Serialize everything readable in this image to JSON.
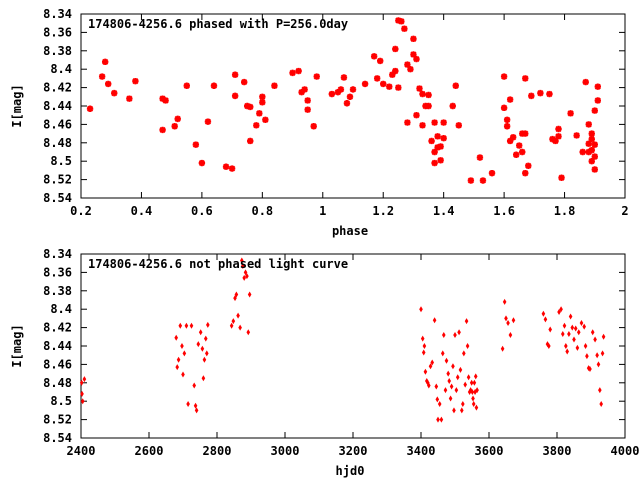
{
  "chart_data": [
    {
      "type": "scatter",
      "title": "174806-4256.6 phased with P=256.0day",
      "xlabel": "phase",
      "ylabel": "I[mag]",
      "xlim": [
        0.2,
        2.0
      ],
      "ylim": [
        8.34,
        8.54
      ],
      "y_inverted": true,
      "xticks": [
        "0.2",
        "0.4",
        "0.6",
        "0.8",
        "1",
        "1.2",
        "1.4",
        "1.6",
        "1.8",
        "2"
      ],
      "xtick_values": [
        0.2,
        0.4,
        0.6,
        0.8,
        1.0,
        1.2,
        1.4,
        1.6,
        1.8,
        2.0
      ],
      "yticks": [
        "8.34",
        "8.36",
        "8.38",
        "8.4",
        "8.42",
        "8.44",
        "8.46",
        "8.48",
        "8.5",
        "8.52",
        "8.54"
      ],
      "ytick_values": [
        8.34,
        8.36,
        8.38,
        8.4,
        8.42,
        8.44,
        8.46,
        8.48,
        8.5,
        8.52,
        8.54
      ],
      "marker": "star",
      "color": "#ff0000",
      "points": [
        [
          0.23,
          8.443
        ],
        [
          0.27,
          8.408
        ],
        [
          0.28,
          8.392
        ],
        [
          0.29,
          8.416
        ],
        [
          0.31,
          8.426
        ],
        [
          0.36,
          8.432
        ],
        [
          0.38,
          8.413
        ],
        [
          0.47,
          8.432
        ],
        [
          0.47,
          8.466
        ],
        [
          0.48,
          8.434
        ],
        [
          0.51,
          8.462
        ],
        [
          0.52,
          8.454
        ],
        [
          0.55,
          8.418
        ],
        [
          0.58,
          8.482
        ],
        [
          0.6,
          8.502
        ],
        [
          0.62,
          8.457
        ],
        [
          0.64,
          8.418
        ],
        [
          0.68,
          8.506
        ],
        [
          0.7,
          8.508
        ],
        [
          0.71,
          8.406
        ],
        [
          0.71,
          8.429
        ],
        [
          0.74,
          8.414
        ],
        [
          0.75,
          8.44
        ],
        [
          0.76,
          8.441
        ],
        [
          0.76,
          8.478
        ],
        [
          0.78,
          8.461
        ],
        [
          0.79,
          8.448
        ],
        [
          0.8,
          8.436
        ],
        [
          0.8,
          8.43
        ],
        [
          0.81,
          8.455
        ],
        [
          0.84,
          8.418
        ],
        [
          0.9,
          8.404
        ],
        [
          0.92,
          8.402
        ],
        [
          0.93,
          8.425
        ],
        [
          0.94,
          8.422
        ],
        [
          0.95,
          8.444
        ],
        [
          0.95,
          8.434
        ],
        [
          0.97,
          8.462
        ],
        [
          0.98,
          8.408
        ],
        [
          1.03,
          8.427
        ],
        [
          1.05,
          8.425
        ],
        [
          1.06,
          8.422
        ],
        [
          1.07,
          8.409
        ],
        [
          1.08,
          8.437
        ],
        [
          1.09,
          8.43
        ],
        [
          1.1,
          8.422
        ],
        [
          1.14,
          8.416
        ],
        [
          1.17,
          8.386
        ],
        [
          1.18,
          8.41
        ],
        [
          1.19,
          8.391
        ],
        [
          1.2,
          8.416
        ],
        [
          1.22,
          8.419
        ],
        [
          1.23,
          8.406
        ],
        [
          1.24,
          8.378
        ],
        [
          1.24,
          8.402
        ],
        [
          1.25,
          8.347
        ],
        [
          1.25,
          8.42
        ],
        [
          1.26,
          8.348
        ],
        [
          1.27,
          8.356
        ],
        [
          1.28,
          8.395
        ],
        [
          1.28,
          8.458
        ],
        [
          1.29,
          8.4
        ],
        [
          1.3,
          8.384
        ],
        [
          1.3,
          8.367
        ],
        [
          1.31,
          8.45
        ],
        [
          1.31,
          8.389
        ],
        [
          1.32,
          8.421
        ],
        [
          1.33,
          8.427
        ],
        [
          1.33,
          8.461
        ],
        [
          1.34,
          8.44
        ],
        [
          1.35,
          8.44
        ],
        [
          1.35,
          8.428
        ],
        [
          1.36,
          8.478
        ],
        [
          1.37,
          8.49
        ],
        [
          1.37,
          8.458
        ],
        [
          1.37,
          8.502
        ],
        [
          1.38,
          8.485
        ],
        [
          1.38,
          8.473
        ],
        [
          1.39,
          8.484
        ],
        [
          1.39,
          8.499
        ],
        [
          1.4,
          8.458
        ],
        [
          1.4,
          8.475
        ],
        [
          1.43,
          8.44
        ],
        [
          1.44,
          8.418
        ],
        [
          1.45,
          8.461
        ],
        [
          1.49,
          8.521
        ],
        [
          1.52,
          8.496
        ],
        [
          1.53,
          8.521
        ],
        [
          1.56,
          8.513
        ],
        [
          1.6,
          8.442
        ],
        [
          1.6,
          8.408
        ],
        [
          1.61,
          8.462
        ],
        [
          1.61,
          8.455
        ],
        [
          1.62,
          8.478
        ],
        [
          1.62,
          8.433
        ],
        [
          1.63,
          8.474
        ],
        [
          1.64,
          8.493
        ],
        [
          1.65,
          8.483
        ],
        [
          1.66,
          8.49
        ],
        [
          1.66,
          8.47
        ],
        [
          1.67,
          8.513
        ],
        [
          1.67,
          8.41
        ],
        [
          1.67,
          8.47
        ],
        [
          1.68,
          8.505
        ],
        [
          1.69,
          8.429
        ],
        [
          1.72,
          8.426
        ],
        [
          1.75,
          8.427
        ],
        [
          1.76,
          8.476
        ],
        [
          1.77,
          8.478
        ],
        [
          1.78,
          8.465
        ],
        [
          1.78,
          8.473
        ],
        [
          1.79,
          8.518
        ],
        [
          1.82,
          8.448
        ],
        [
          1.84,
          8.472
        ],
        [
          1.86,
          8.49
        ],
        [
          1.87,
          8.414
        ],
        [
          1.88,
          8.46
        ],
        [
          1.88,
          8.49
        ],
        [
          1.88,
          8.481
        ],
        [
          1.89,
          8.476
        ],
        [
          1.89,
          8.5
        ],
        [
          1.89,
          8.488
        ],
        [
          1.9,
          8.509
        ],
        [
          1.9,
          8.495
        ],
        [
          1.9,
          8.482
        ],
        [
          1.91,
          8.434
        ],
        [
          1.91,
          8.419
        ],
        [
          1.9,
          8.445
        ],
        [
          1.89,
          8.47
        ]
      ]
    },
    {
      "type": "scatter",
      "title": "174806-4256.6 not phased light curve",
      "xlabel": "hjd0",
      "ylabel": "I[mag]",
      "xlim": [
        2400,
        4000
      ],
      "ylim": [
        8.34,
        8.54
      ],
      "y_inverted": true,
      "xticks": [
        "2400",
        "2600",
        "2800",
        "3000",
        "3200",
        "3400",
        "3600",
        "3800",
        "4000"
      ],
      "xtick_values": [
        2400,
        2600,
        2800,
        3000,
        3200,
        3400,
        3600,
        3800,
        4000
      ],
      "yticks": [
        "8.34",
        "8.36",
        "8.38",
        "8.4",
        "8.42",
        "8.44",
        "8.46",
        "8.48",
        "8.5",
        "8.52",
        "8.54"
      ],
      "ytick_values": [
        8.34,
        8.36,
        8.38,
        8.4,
        8.42,
        8.44,
        8.46,
        8.48,
        8.5,
        8.52,
        8.54
      ],
      "marker": "diamond",
      "color": "#ff0000",
      "points": [
        [
          2402,
          8.48
        ],
        [
          2403,
          8.492
        ],
        [
          2405,
          8.5
        ],
        [
          2410,
          8.476
        ],
        [
          2680,
          8.431
        ],
        [
          2683,
          8.463
        ],
        [
          2687,
          8.455
        ],
        [
          2692,
          8.418
        ],
        [
          2697,
          8.44
        ],
        [
          2700,
          8.471
        ],
        [
          2704,
          8.448
        ],
        [
          2710,
          8.418
        ],
        [
          2715,
          8.503
        ],
        [
          2725,
          8.418
        ],
        [
          2733,
          8.483
        ],
        [
          2737,
          8.505
        ],
        [
          2740,
          8.51
        ],
        [
          2745,
          8.438
        ],
        [
          2752,
          8.425
        ],
        [
          2757,
          8.443
        ],
        [
          2760,
          8.475
        ],
        [
          2763,
          8.455
        ],
        [
          2767,
          8.432
        ],
        [
          2770,
          8.448
        ],
        [
          2773,
          8.417
        ],
        [
          2843,
          8.418
        ],
        [
          2848,
          8.413
        ],
        [
          2853,
          8.388
        ],
        [
          2857,
          8.384
        ],
        [
          2862,
          8.407
        ],
        [
          2868,
          8.42
        ],
        [
          2873,
          8.347
        ],
        [
          2876,
          8.353
        ],
        [
          2880,
          8.366
        ],
        [
          2884,
          8.36
        ],
        [
          2888,
          8.364
        ],
        [
          2892,
          8.425
        ],
        [
          2896,
          8.384
        ],
        [
          3400,
          8.4
        ],
        [
          3405,
          8.432
        ],
        [
          3408,
          8.447
        ],
        [
          3410,
          8.44
        ],
        [
          3413,
          8.468
        ],
        [
          3417,
          8.478
        ],
        [
          3420,
          8.48
        ],
        [
          3423,
          8.483
        ],
        [
          3428,
          8.462
        ],
        [
          3433,
          8.458
        ],
        [
          3440,
          8.412
        ],
        [
          3445,
          8.484
        ],
        [
          3448,
          8.498
        ],
        [
          3450,
          8.52
        ],
        [
          3455,
          8.503
        ],
        [
          3460,
          8.52
        ],
        [
          3464,
          8.448
        ],
        [
          3467,
          8.428
        ],
        [
          3472,
          8.488
        ],
        [
          3475,
          8.456
        ],
        [
          3480,
          8.47
        ],
        [
          3483,
          8.478
        ],
        [
          3487,
          8.497
        ],
        [
          3490,
          8.484
        ],
        [
          3494,
          8.462
        ],
        [
          3497,
          8.51
        ],
        [
          3500,
          8.428
        ],
        [
          3504,
          8.488
        ],
        [
          3508,
          8.474
        ],
        [
          3512,
          8.425
        ],
        [
          3516,
          8.466
        ],
        [
          3520,
          8.51
        ],
        [
          3523,
          8.503
        ],
        [
          3526,
          8.448
        ],
        [
          3530,
          8.482
        ],
        [
          3534,
          8.413
        ],
        [
          3537,
          8.44
        ],
        [
          3540,
          8.474
        ],
        [
          3543,
          8.49
        ],
        [
          3546,
          8.488
        ],
        [
          3549,
          8.48
        ],
        [
          3551,
          8.49
        ],
        [
          3553,
          8.497
        ],
        [
          3555,
          8.503
        ],
        [
          3557,
          8.48
        ],
        [
          3559,
          8.49
        ],
        [
          3561,
          8.473
        ],
        [
          3563,
          8.507
        ],
        [
          3565,
          8.488
        ],
        [
          3640,
          8.443
        ],
        [
          3646,
          8.392
        ],
        [
          3650,
          8.41
        ],
        [
          3656,
          8.415
        ],
        [
          3663,
          8.428
        ],
        [
          3672,
          8.412
        ],
        [
          3760,
          8.405
        ],
        [
          3766,
          8.411
        ],
        [
          3772,
          8.438
        ],
        [
          3776,
          8.44
        ],
        [
          3780,
          8.422
        ],
        [
          3806,
          8.403
        ],
        [
          3812,
          8.4
        ],
        [
          3817,
          8.427
        ],
        [
          3822,
          8.418
        ],
        [
          3826,
          8.44
        ],
        [
          3830,
          8.446
        ],
        [
          3835,
          8.427
        ],
        [
          3840,
          8.408
        ],
        [
          3845,
          8.42
        ],
        [
          3850,
          8.433
        ],
        [
          3855,
          8.421
        ],
        [
          3860,
          8.442
        ],
        [
          3864,
          8.425
        ],
        [
          3872,
          8.415
        ],
        [
          3880,
          8.419
        ],
        [
          3884,
          8.44
        ],
        [
          3888,
          8.451
        ],
        [
          3893,
          8.464
        ],
        [
          3897,
          8.465
        ],
        [
          3905,
          8.425
        ],
        [
          3912,
          8.433
        ],
        [
          3918,
          8.45
        ],
        [
          3922,
          8.46
        ],
        [
          3926,
          8.488
        ],
        [
          3930,
          8.503
        ],
        [
          3934,
          8.448
        ],
        [
          3937,
          8.43
        ]
      ]
    }
  ]
}
